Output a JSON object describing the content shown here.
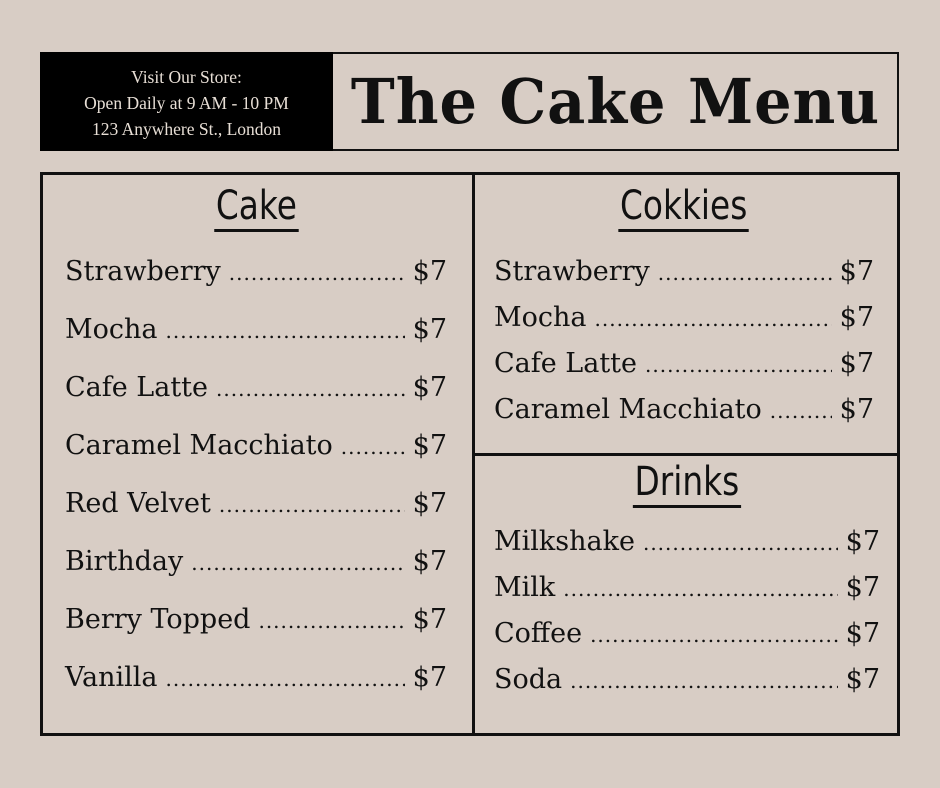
{
  "header": {
    "info_lines": [
      "Visit Our Store:",
      "Open Daily at 9 AM - 10 PM",
      "123 Anywhere St., London"
    ],
    "title": "The Cake Menu"
  },
  "sections": {
    "cake": {
      "title": "Cake",
      "items": [
        {
          "name": "Strawberry",
          "price": "$7"
        },
        {
          "name": "Mocha",
          "price": "$7"
        },
        {
          "name": "Cafe Latte",
          "price": "$7"
        },
        {
          "name": "Caramel Macchiato",
          "price": "$7"
        },
        {
          "name": "Red Velvet",
          "price": "$7"
        },
        {
          "name": "Birthday",
          "price": "$7"
        },
        {
          "name": "Berry Topped",
          "price": "$7"
        },
        {
          "name": "Vanilla",
          "price": "$7"
        }
      ]
    },
    "cookies": {
      "title": "Cokkies",
      "items": [
        {
          "name": "Strawberry",
          "price": "$7"
        },
        {
          "name": "Mocha",
          "price": "$7"
        },
        {
          "name": "Cafe Latte",
          "price": "$7"
        },
        {
          "name": "Caramel Macchiato",
          "price": "$7"
        }
      ]
    },
    "drinks": {
      "title": "Drinks",
      "items": [
        {
          "name": "Milkshake",
          "price": "$7"
        },
        {
          "name": "Milk",
          "price": "$7"
        },
        {
          "name": "Coffee",
          "price": "$7"
        },
        {
          "name": "Soda",
          "price": "$7"
        }
      ]
    }
  },
  "colors": {
    "background": "#d8cdc5",
    "ink": "#111111",
    "info_band": "#000000"
  }
}
